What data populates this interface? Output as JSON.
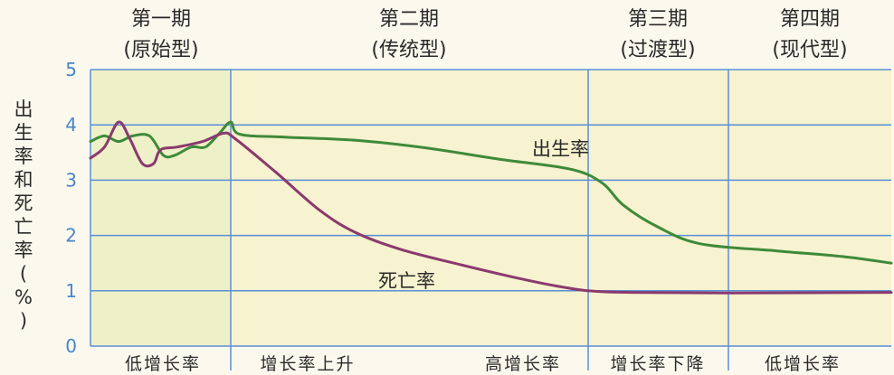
{
  "chart_data": {
    "type": "line",
    "ylabel": "出生率和死亡率(%)",
    "ylim": [
      0,
      5
    ],
    "yticks": [
      "0",
      "1",
      "2",
      "3",
      "4",
      "5"
    ],
    "phases": [
      {
        "name": "第一期",
        "type": "(原始型)",
        "x_range": [
          0,
          1
        ]
      },
      {
        "name": "第二期",
        "type": "(传统型)",
        "x_range": [
          1,
          5
        ]
      },
      {
        "name": "第三期",
        "type": "(过渡型)",
        "x_range": [
          5,
          6
        ]
      },
      {
        "name": "第四期",
        "type": "(现代型)",
        "x_range": [
          6,
          7
        ]
      }
    ],
    "stage_labels": [
      "低增长率",
      "增长率上升",
      "高增长率",
      "增长率下降",
      "低增长率"
    ],
    "series": [
      {
        "name": "出生率",
        "color": "#3e8a3a",
        "points": [
          [
            0,
            3.7
          ],
          [
            0.1,
            3.8
          ],
          [
            0.2,
            3.7
          ],
          [
            0.3,
            3.8
          ],
          [
            0.42,
            3.8
          ],
          [
            0.52,
            3.45
          ],
          [
            0.6,
            3.45
          ],
          [
            0.72,
            3.6
          ],
          [
            0.82,
            3.6
          ],
          [
            0.92,
            3.85
          ],
          [
            1.0,
            4.05
          ],
          [
            1.1,
            3.83
          ],
          [
            1.6,
            3.78
          ],
          [
            2.4,
            3.72
          ],
          [
            3.2,
            3.58
          ],
          [
            4.0,
            3.38
          ],
          [
            4.8,
            3.2
          ],
          [
            5.1,
            2.95
          ],
          [
            5.25,
            2.55
          ],
          [
            5.5,
            2.15
          ],
          [
            5.8,
            1.85
          ],
          [
            6.3,
            1.72
          ],
          [
            6.7,
            1.62
          ],
          [
            7.0,
            1.5
          ]
        ]
      },
      {
        "name": "死亡率",
        "color": "#8a3a6e",
        "points": [
          [
            0,
            3.4
          ],
          [
            0.1,
            3.6
          ],
          [
            0.2,
            4.05
          ],
          [
            0.28,
            3.75
          ],
          [
            0.37,
            3.3
          ],
          [
            0.45,
            3.3
          ],
          [
            0.5,
            3.55
          ],
          [
            0.62,
            3.6
          ],
          [
            0.8,
            3.7
          ],
          [
            0.95,
            3.85
          ],
          [
            1.05,
            3.75
          ],
          [
            1.5,
            3.15
          ],
          [
            2.0,
            2.45
          ],
          [
            2.4,
            2.05
          ],
          [
            2.9,
            1.75
          ],
          [
            3.5,
            1.5
          ],
          [
            4.1,
            1.27
          ],
          [
            4.6,
            1.1
          ],
          [
            5.0,
            1.0
          ],
          [
            5.3,
            0.97
          ],
          [
            6.0,
            0.96
          ],
          [
            7.0,
            0.97
          ]
        ]
      }
    ],
    "x_positions": [
      100,
      255,
      650,
      805,
      985
    ],
    "grid": true
  }
}
